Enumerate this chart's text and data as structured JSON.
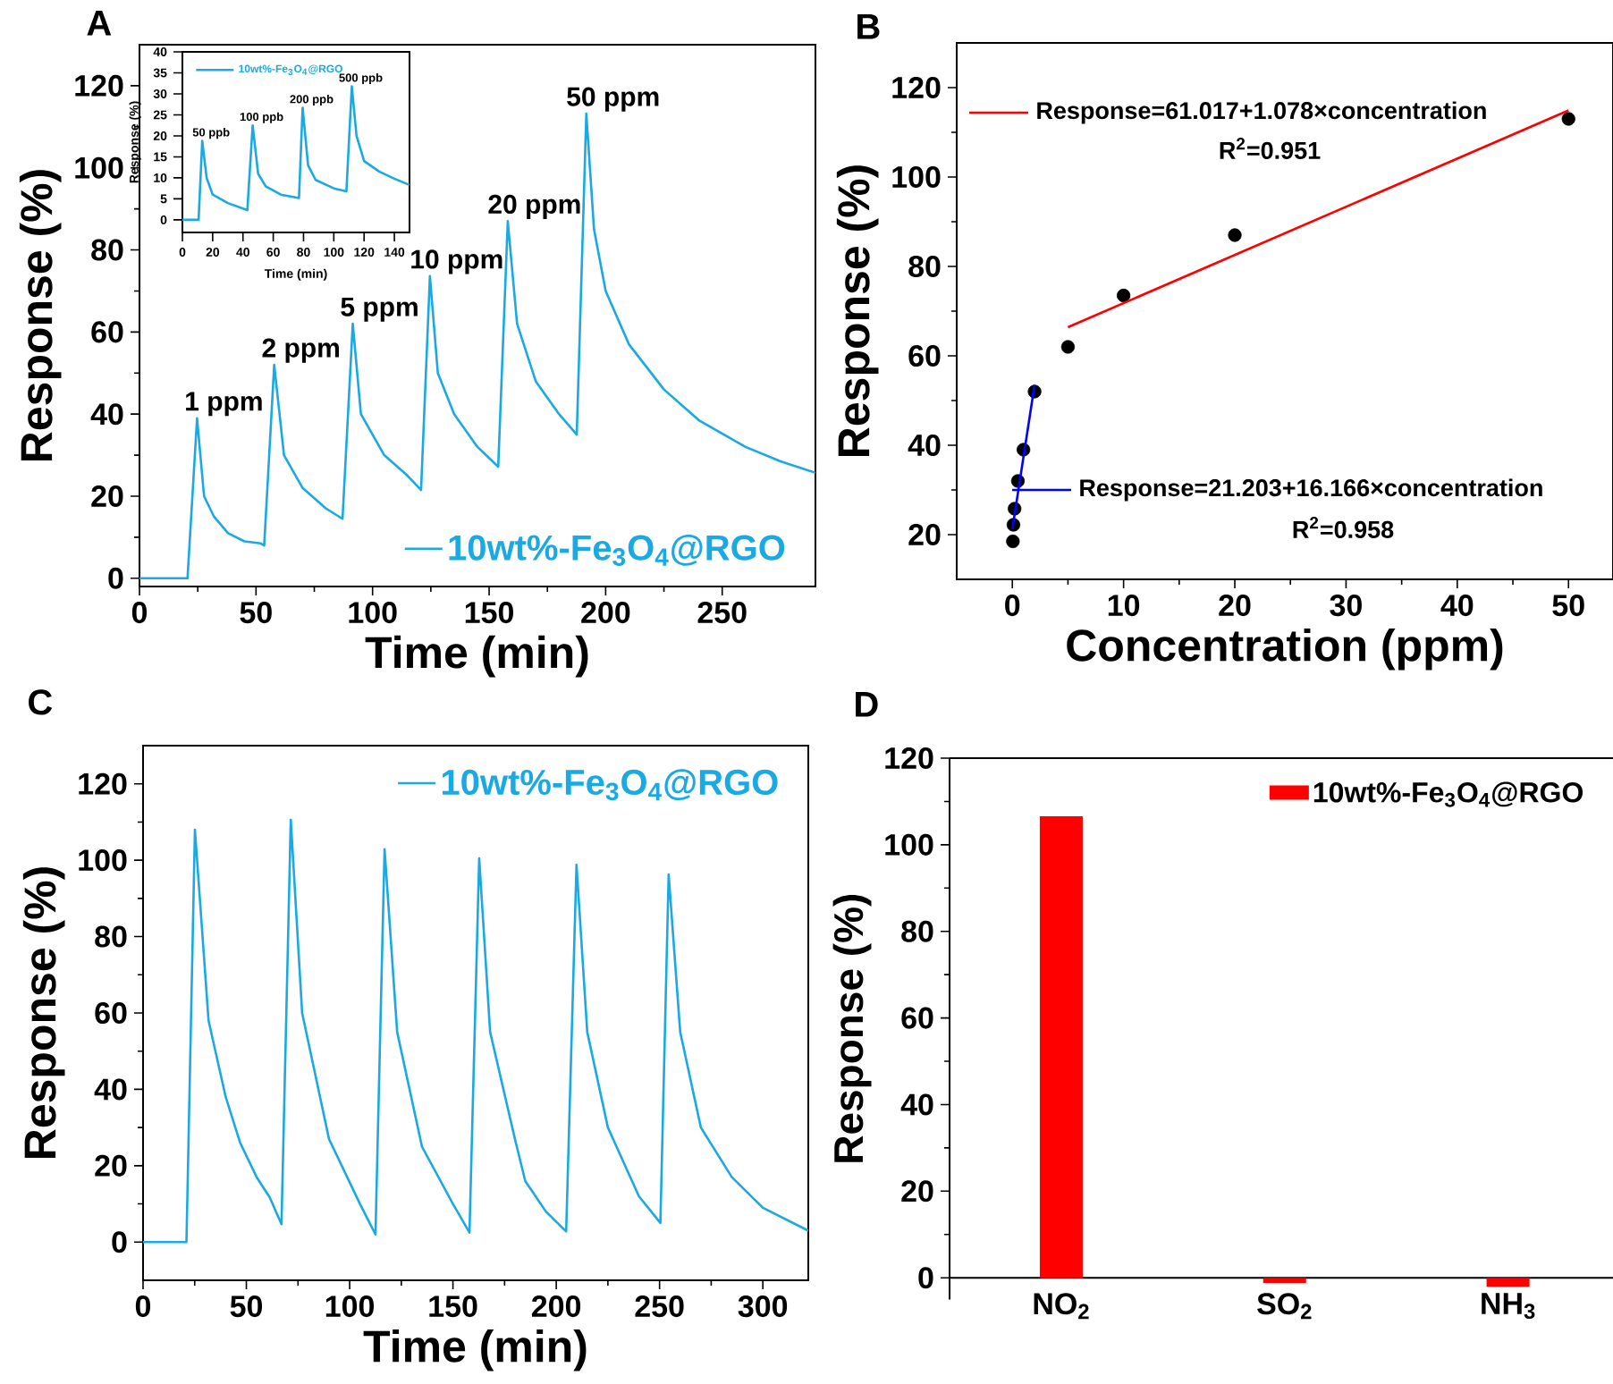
{
  "chart_data": [
    {
      "type": "line",
      "title": "A",
      "xlabel": "Time (min)",
      "ylabel": "Response (%)",
      "xlim": [
        0,
        290
      ],
      "ylim": [
        -2,
        130
      ],
      "xticks": [
        0,
        50,
        100,
        150,
        200,
        250
      ],
      "yticks": [
        0,
        20,
        40,
        60,
        80,
        100,
        120
      ],
      "legend": "bottom right",
      "series": [
        {
          "name": "10wt%-Fe$_{3}$O$_{4}$@RGO",
          "color": "#1aa9e2",
          "x": [
            0,
            20.6,
            24.7,
            27.7,
            32,
            38,
            45,
            52,
            53.5,
            57.8,
            62,
            70,
            80,
            87.1,
            91.5,
            95,
            105,
            115,
            120.8,
            124.6,
            128,
            135,
            145,
            153.9,
            158,
            162,
            170,
            180,
            187.6,
            191.7,
            195,
            200,
            210,
            225,
            240,
            260,
            275,
            290
          ],
          "values": [
            0,
            0,
            39,
            20,
            15,
            11,
            9,
            8.5,
            8,
            52,
            30,
            22,
            17,
            14.5,
            62,
            40,
            30,
            25,
            21.5,
            73.6,
            50,
            40,
            32,
            27.2,
            87,
            62,
            48,
            40,
            35,
            113.2,
            85,
            70,
            57,
            46,
            38.5,
            32,
            28.5,
            25.7
          ]
        }
      ],
      "annotations": [
        {
          "text": "1 ppm",
          "x": 24.7,
          "y": 39
        },
        {
          "text": "2 ppm",
          "x": 57.8,
          "y": 52
        },
        {
          "text": "5 ppm",
          "x": 91.5,
          "y": 62
        },
        {
          "text": "10 ppm",
          "x": 124.6,
          "y": 73.6
        },
        {
          "text": "20 ppm",
          "x": 158,
          "y": 87
        },
        {
          "text": "50 ppm",
          "x": 191.7,
          "y": 113.2
        }
      ]
    },
    {
      "type": "line",
      "xlabel": "Time (min)",
      "ylabel": "Response (%)",
      "xlim": [
        0,
        150
      ],
      "ylim": [
        -3,
        40
      ],
      "xticks": [
        0,
        20,
        40,
        60,
        80,
        100,
        120,
        140
      ],
      "yticks": [
        0,
        5,
        10,
        15,
        20,
        25,
        30,
        35,
        40
      ],
      "legend": "top left",
      "series": [
        {
          "name": "10wt%-Fe$_{3}$O$_{4}$@RGO",
          "color": "#1aa9e2",
          "x": [
            0,
            10.7,
            13.1,
            16,
            20,
            30,
            42.9,
            46.4,
            50,
            55,
            65,
            77,
            79.4,
            83,
            88,
            100,
            108.3,
            111.9,
            115,
            120,
            130,
            140,
            150
          ],
          "values": [
            0,
            0,
            18.8,
            10,
            6,
            4,
            2.3,
            22.5,
            11,
            8,
            6,
            5.2,
            26.7,
            13,
            9.5,
            7.5,
            6.8,
            31.8,
            20,
            14,
            11.5,
            9.8,
            8.3
          ]
        }
      ],
      "annotations": [
        {
          "text": "50 ppb",
          "x": 13.1,
          "y": 18.8
        },
        {
          "text": "100 ppb",
          "x": 46.4,
          "y": 22.5
        },
        {
          "text": "200 ppb",
          "x": 79.4,
          "y": 26.7
        },
        {
          "text": "500 ppb",
          "x": 111.9,
          "y": 31.8
        }
      ]
    },
    {
      "type": "scatter",
      "title": "B",
      "xlabel": "Concentration (ppm)",
      "ylabel": "Response (%)",
      "xlim": [
        -5,
        54
      ],
      "ylim": [
        10,
        130
      ],
      "xticks": [
        0,
        10,
        20,
        30,
        40,
        50
      ],
      "yticks": [
        20,
        40,
        60,
        80,
        100,
        120
      ],
      "legend": "top left",
      "marker": "circle",
      "series": [
        {
          "type": "scatter",
          "color": "#000000",
          "x": [
            0.05,
            0.1,
            0.2,
            0.5,
            1,
            2,
            5,
            10,
            20,
            50
          ],
          "values": [
            18.5,
            22.2,
            25.8,
            32,
            39,
            52,
            62,
            73.5,
            87,
            113
          ]
        },
        {
          "type": "line",
          "marker": "none",
          "name": "Response=61.017+1.078×concentration",
          "color": "#ff0000",
          "x": [
            5,
            50
          ],
          "values": [
            66.4,
            114.9
          ]
        },
        {
          "type": "line",
          "marker": "none",
          "name": "Response=21.203+16.166×concentration",
          "color": "#0000ff",
          "x": [
            0,
            2
          ],
          "values": [
            21.2,
            53.5
          ]
        }
      ],
      "annotations": [
        "R$^{2}$=0.951",
        "R$^{2}$=0.958"
      ]
    },
    {
      "type": "line",
      "title": "C",
      "xlabel": "Time (min)",
      "ylabel": "Response (%)",
      "xlim": [
        0,
        322
      ],
      "ylim": [
        -10,
        130
      ],
      "xticks": [
        0,
        50,
        100,
        150,
        200,
        250,
        300
      ],
      "yticks": [
        0,
        20,
        40,
        60,
        80,
        100,
        120
      ],
      "legend": "top right",
      "series": [
        {
          "name": "10wt%-Fe$_{3}$O$_{4}$@RGO",
          "color": "#1aa9e2",
          "x": [
            0,
            21,
            25.1,
            31.7,
            40,
            47,
            55,
            61.3,
            67,
            71.5,
            77,
            90,
            105,
            112.5,
            116.9,
            123,
            135,
            150,
            158,
            162.7,
            168,
            180,
            185,
            195,
            204.8,
            209.8,
            215,
            225,
            240,
            250.4,
            254.4,
            260,
            270,
            285,
            300,
            322
          ],
          "values": [
            0,
            0,
            108,
            58,
            38,
            26,
            17,
            11.7,
            4.7,
            110.6,
            60,
            27,
            10,
            2,
            102.9,
            55,
            25,
            10,
            2.5,
            100.5,
            55,
            27,
            16,
            8,
            2.8,
            98.8,
            55,
            30,
            12,
            5,
            96.3,
            55,
            30,
            17,
            9,
            3
          ]
        }
      ]
    },
    {
      "type": "bar",
      "title": "D",
      "ylabel": "Response (%)",
      "categories": [
        "NO$_{2}$",
        "SO$_{2}$",
        "NH$_{3}$"
      ],
      "ylim": [
        -5,
        120
      ],
      "yticks": [
        0,
        20,
        40,
        60,
        80,
        100,
        120
      ],
      "legend": "top right",
      "series": [
        {
          "name": "10wt%-Fe$_{3}$O$_{4}$@RGO",
          "color": "#ff0000",
          "values": [
            106.6,
            -1.2,
            -2.1
          ]
        }
      ]
    }
  ]
}
